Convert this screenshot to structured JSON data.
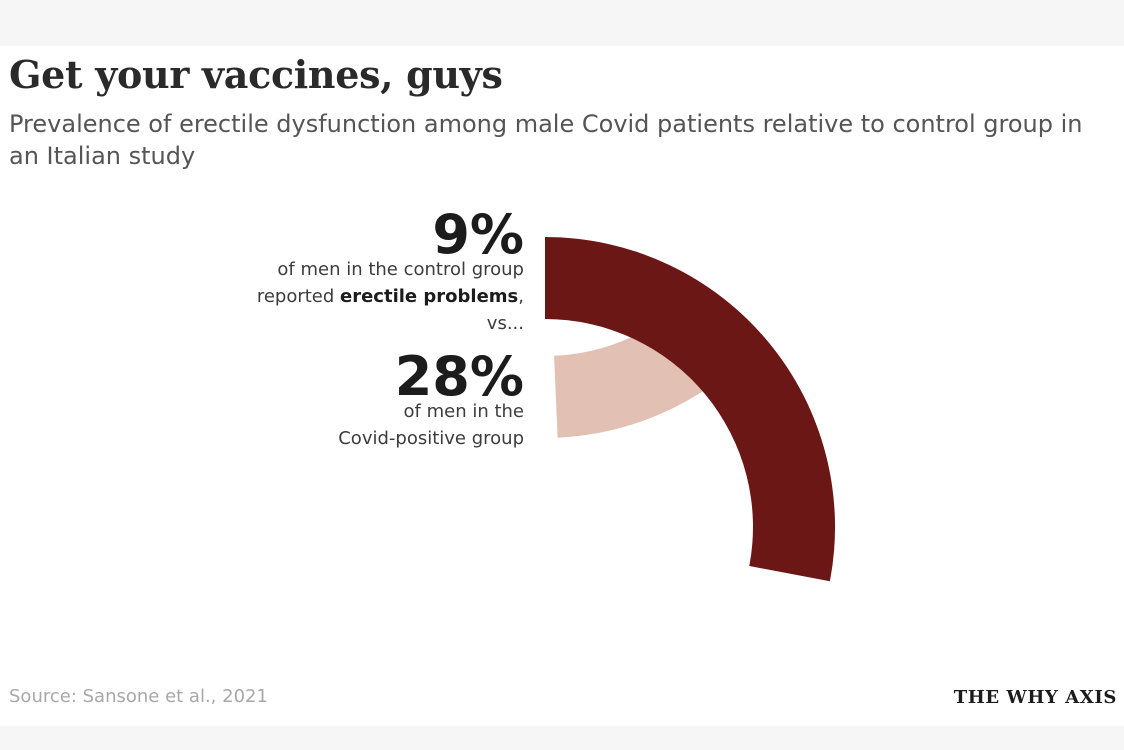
{
  "title": "Get your vaccines, guys",
  "subtitle": "Prevalence of erectile dysfunction among male Covid patients relative to control group in an Italian study",
  "source": "Source: Sansone et al., 2021",
  "brand": "THE WHY AXIS",
  "colors": {
    "control": "#e2c1b4",
    "covid": "#6b1716"
  },
  "chart_data": {
    "type": "pie",
    "series": [
      {
        "value": 9,
        "value_label": "9%",
        "color": "#e2c1b4",
        "annotation_lines": [
          [
            {
              "text": "of men in the control group",
              "bold": false
            }
          ],
          [
            {
              "text": "reported ",
              "bold": false
            },
            {
              "text": "erectile problems",
              "bold": true
            },
            {
              "text": ",",
              "bold": false
            }
          ],
          [
            {
              "text": "vs...",
              "bold": false
            }
          ]
        ]
      },
      {
        "value": 28,
        "value_label": "28%",
        "color": "#6b1716",
        "annotation_lines": [
          [
            {
              "text": "of men in the",
              "bold": false
            }
          ],
          [
            {
              "text": "Covid-positive group",
              "bold": false
            }
          ]
        ]
      }
    ]
  }
}
